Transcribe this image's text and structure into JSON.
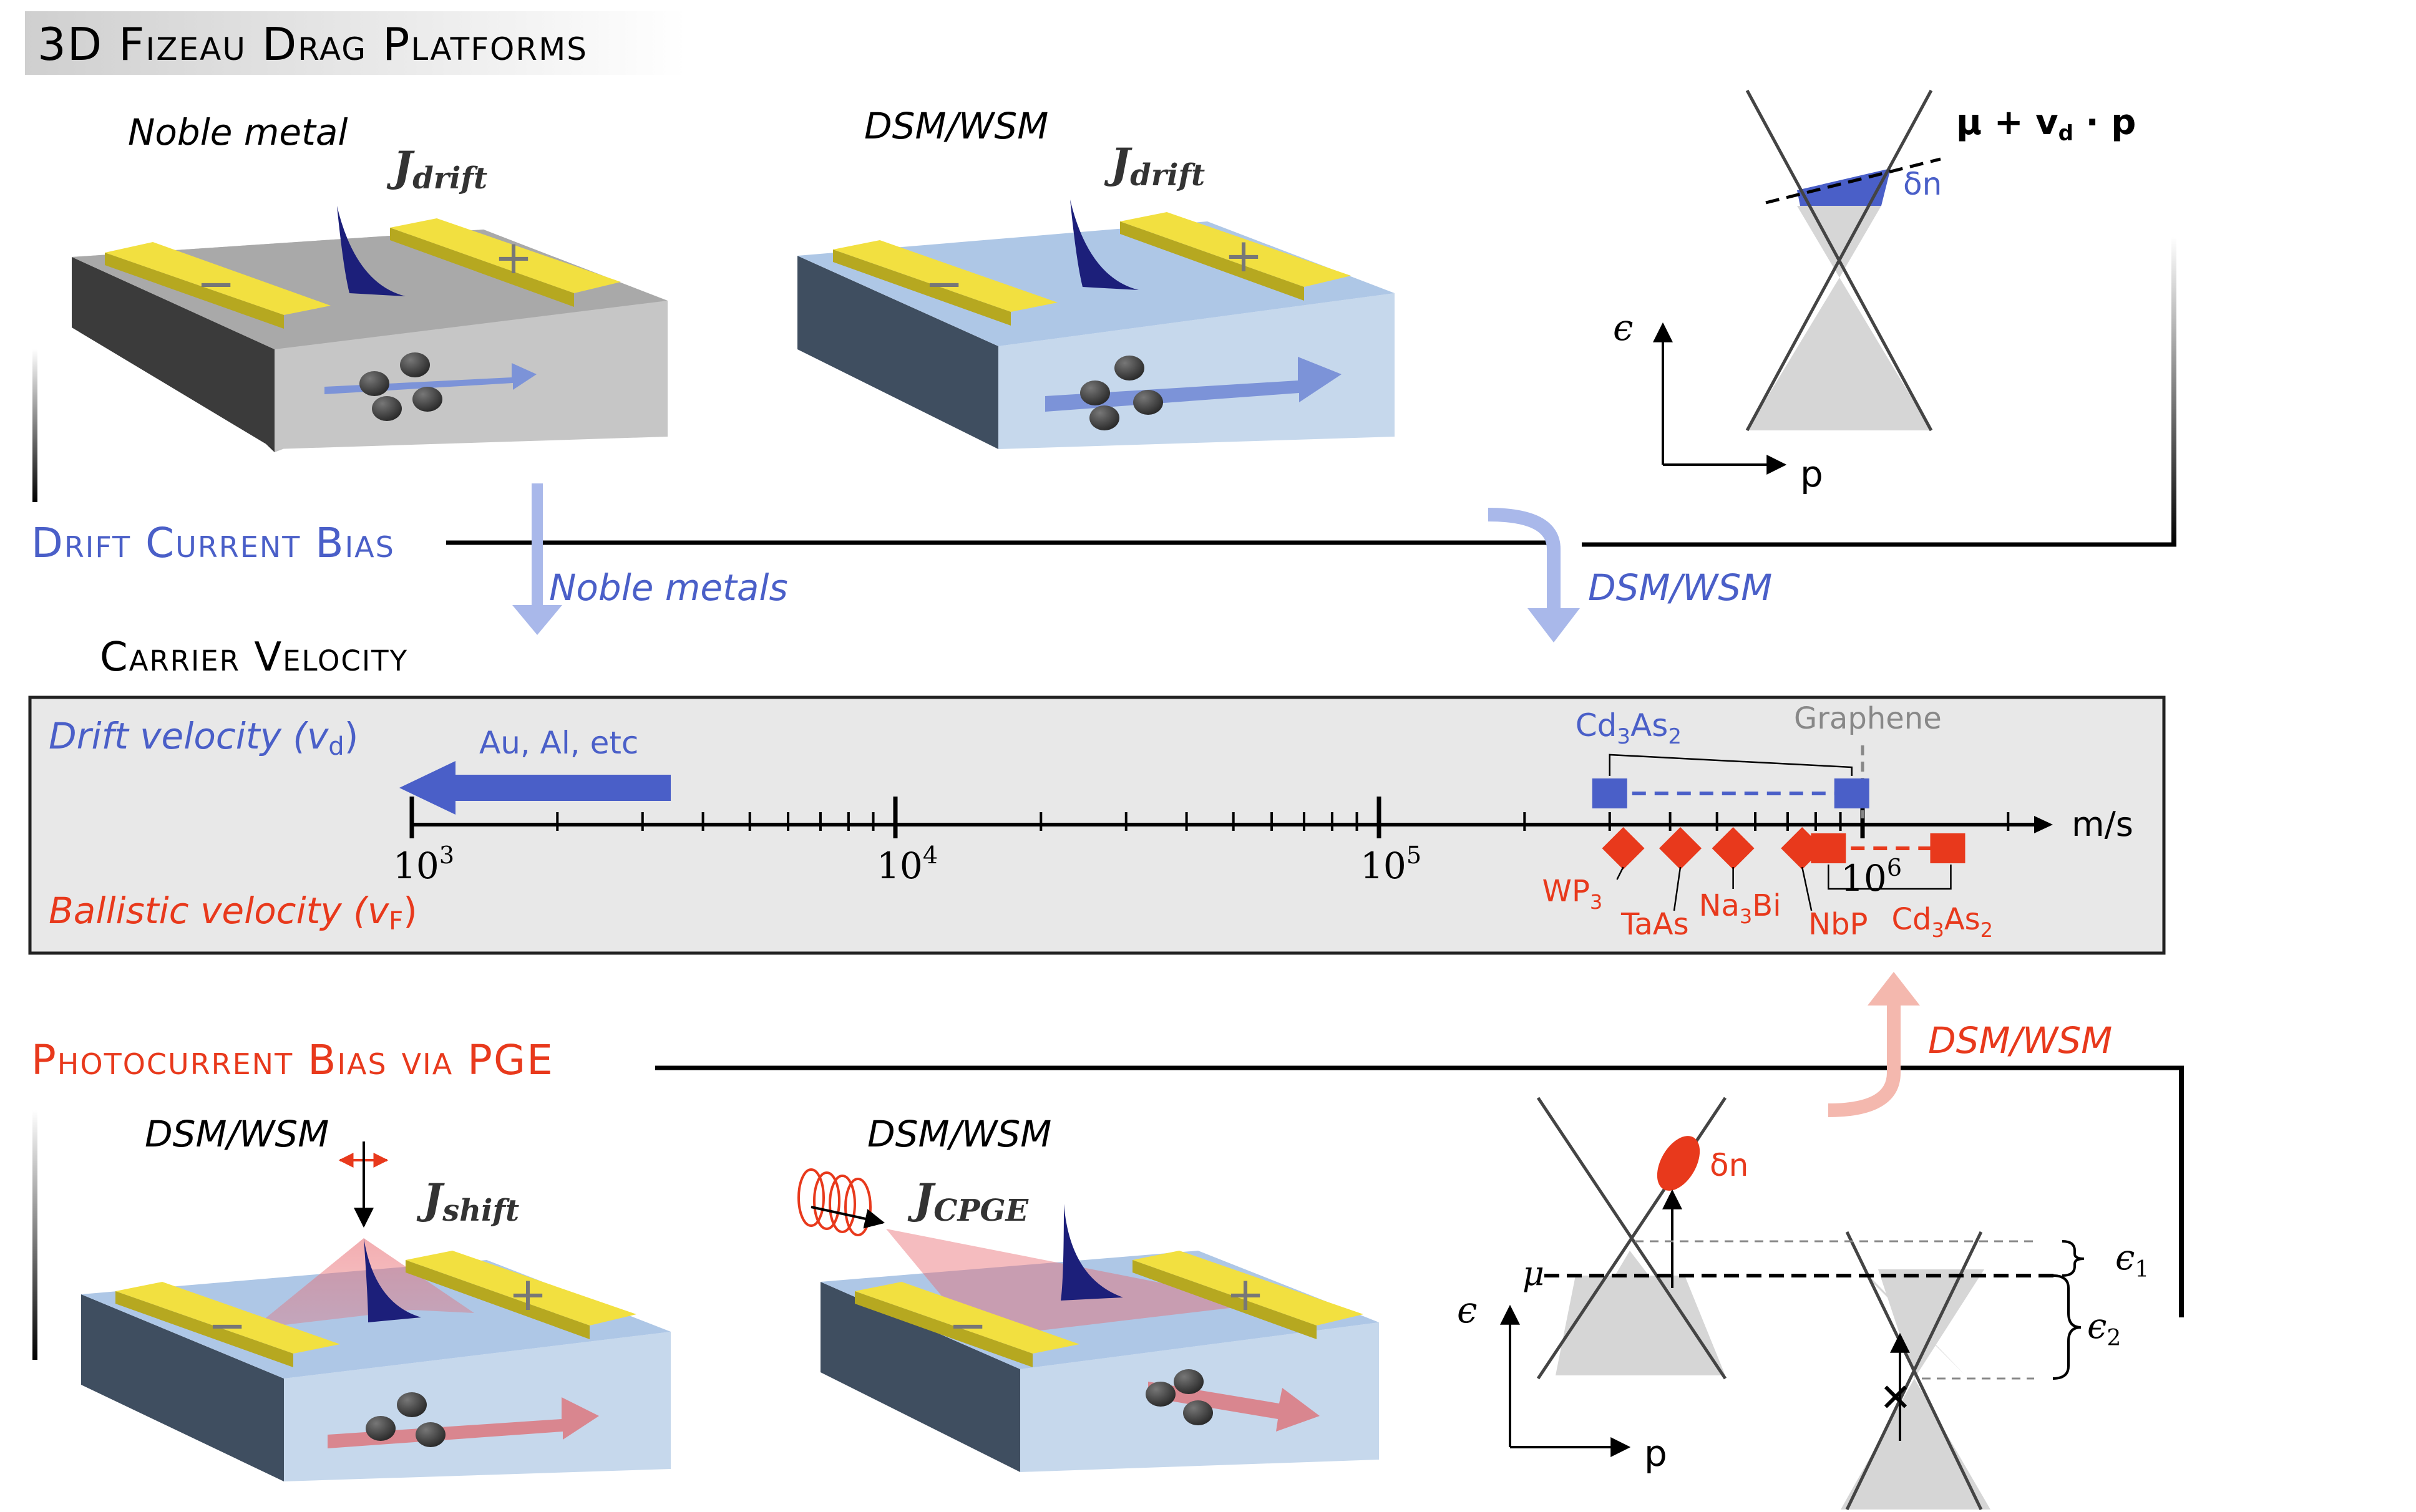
{
  "title": "3D Fizeau Drag Platforms",
  "sections": {
    "drift": "Drift Current Bias",
    "velocity": "Carrier Velocity",
    "photo": "Photocurrent Bias via PGE"
  },
  "arrows": {
    "noble_metals": "Noble metals",
    "dsm_wsm_top": "DSM/WSM",
    "dsm_wsm_bottom": "DSM/WSM"
  },
  "devices": {
    "noble_metal_label": "Noble metal",
    "dsm_top_label": "DSM/WSM",
    "j_drift_main": "J",
    "j_drift_sub": "drift",
    "dsm_shift_label": "DSM/WSM",
    "j_shift_main": "J",
    "j_shift_sub": "shift",
    "dsm_cpge_label": "DSM/WSM",
    "j_cpge_main": "J",
    "j_cpge_sub": "CPGE",
    "minus": "−",
    "plus": "+"
  },
  "band_top": {
    "mu_label": "μ + v",
    "mu_sub": "d",
    "mu_tail": " · p",
    "dn": "δn",
    "eps": "ϵ",
    "p": "p"
  },
  "band_bottom": {
    "dn": "δn",
    "mu": "μ",
    "eps": "ϵ",
    "p": "p",
    "eps1": "ϵ",
    "eps1_sub": "1",
    "eps2": "ϵ",
    "eps2_sub": "2",
    "cross": "✕"
  },
  "colors": {
    "blue": "#4a5fc8",
    "red": "#e8391c",
    "gold": "#f2e040",
    "device_blue": "#bdd3ea",
    "device_gray": "#c4c4c4"
  },
  "chart_data": {
    "type": "scatter",
    "xscale": "log",
    "xlim": [
      1000,
      2500000
    ],
    "xunit": "m/s",
    "tick_labels": [
      {
        "base": "10",
        "exp": "3"
      },
      {
        "base": "10",
        "exp": "4"
      },
      {
        "base": "10",
        "exp": "5"
      },
      {
        "base": "10",
        "exp": "6"
      }
    ],
    "drift_label": "Drift velocity (v",
    "drift_sub": "d",
    "ballistic_label": "Ballistic velocity (v",
    "ballistic_sub": "F",
    "close_paren": ")",
    "drift_arrow_label": "Au, Al, etc",
    "graphene": {
      "name": "Graphene",
      "x": 1000000
    },
    "drift_series": [
      {
        "name": "Cd3As2",
        "label_main": "Cd",
        "label_sub1": "3",
        "label_mid": "As",
        "label_sub2": "2",
        "x_min": 300000,
        "x_max": 950000
      }
    ],
    "ballistic_points": [
      {
        "name": "WP3",
        "label": "WP",
        "sub": "3",
        "x": 320000
      },
      {
        "name": "TaAs",
        "label": "TaAs",
        "sub": "",
        "x": 420000
      },
      {
        "name": "Na3Bi",
        "label_a": "Na",
        "sub": "3",
        "label_b": "Bi",
        "x": 540000
      },
      {
        "name": "NbP",
        "label": "NbP",
        "sub": "",
        "x": 750000
      }
    ],
    "ballistic_range": {
      "name": "Cd3As2",
      "label_main": "Cd",
      "label_sub1": "3",
      "label_mid": "As",
      "label_sub2": "2",
      "x_min": 850000,
      "x_max": 1500000
    }
  }
}
